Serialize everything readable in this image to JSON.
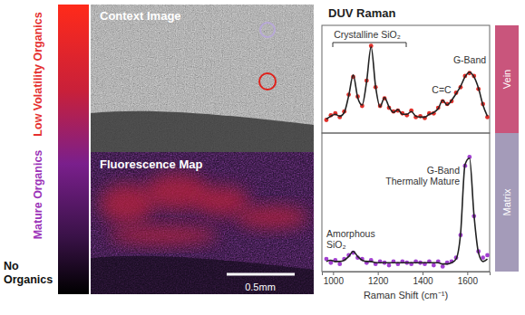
{
  "color_bar": {
    "labels": [
      {
        "lines": [
          "Low Volatility Organics"
        ],
        "color": "#e5302f"
      },
      {
        "lines": [
          "Mature Organics"
        ],
        "color": "#9b32b8"
      },
      {
        "lines": [
          "No",
          "Organics"
        ],
        "color": "#111111"
      }
    ]
  },
  "panels": [
    {
      "title": "Context Image"
    },
    {
      "title": "Fluorescence Map",
      "scale_bar": "0.5mm"
    }
  ],
  "chart_data": [
    {
      "type": "scatter",
      "title": "DUV Raman",
      "panel_label": "Vein",
      "tick_labels": false,
      "xlim": [
        950,
        1700
      ],
      "ylim": [
        0,
        1.15
      ],
      "x": [
        970,
        990,
        1010,
        1030,
        1050,
        1070,
        1090,
        1110,
        1130,
        1150,
        1170,
        1190,
        1210,
        1230,
        1250,
        1270,
        1290,
        1310,
        1330,
        1350,
        1370,
        1390,
        1410,
        1430,
        1450,
        1470,
        1490,
        1510,
        1530,
        1550,
        1570,
        1590,
        1610,
        1630,
        1650,
        1670,
        1690
      ],
      "series": [
        {
          "type": "scatter",
          "marker": "circle",
          "color": "#e0302a",
          "values": [
            0.14,
            0.19,
            0.21,
            0.17,
            0.23,
            0.41,
            0.6,
            0.39,
            0.29,
            0.56,
            0.93,
            0.49,
            0.29,
            0.37,
            0.27,
            0.23,
            0.24,
            0.21,
            0.19,
            0.24,
            0.17,
            0.18,
            0.16,
            0.21,
            0.21,
            0.27,
            0.34,
            0.31,
            0.34,
            0.43,
            0.49,
            0.61,
            0.64,
            0.61,
            0.47,
            0.31,
            0.17
          ]
        },
        {
          "type": "line",
          "line_style": "solid",
          "color": "#222222",
          "values": [
            0.15,
            0.18,
            0.2,
            0.18,
            0.22,
            0.4,
            0.62,
            0.38,
            0.3,
            0.55,
            0.92,
            0.5,
            0.28,
            0.38,
            0.28,
            0.22,
            0.25,
            0.2,
            0.2,
            0.23,
            0.18,
            0.17,
            0.17,
            0.2,
            0.22,
            0.26,
            0.35,
            0.3,
            0.35,
            0.42,
            0.5,
            0.6,
            0.65,
            0.6,
            0.48,
            0.3,
            0.18
          ]
        }
      ],
      "annotations": [
        {
          "lines": [
            "Crystalline SiO₂"
          ]
        },
        {
          "lines": [
            "C=C"
          ]
        },
        {
          "lines": [
            "G-Band"
          ]
        }
      ]
    },
    {
      "type": "scatter",
      "panel_label": "Matrix",
      "tick_labels": "x",
      "x_label": "Raman Shift (cm⁻¹)",
      "xlim": [
        950,
        1700
      ],
      "ylim": [
        0,
        1.1
      ],
      "xticks": [
        1000,
        1200,
        1400,
        1600
      ],
      "x": [
        970,
        990,
        1010,
        1030,
        1050,
        1070,
        1090,
        1110,
        1130,
        1150,
        1170,
        1190,
        1210,
        1230,
        1250,
        1270,
        1290,
        1310,
        1330,
        1350,
        1370,
        1390,
        1410,
        1430,
        1450,
        1470,
        1490,
        1510,
        1530,
        1550,
        1570,
        1590,
        1610,
        1630,
        1650,
        1670,
        1690
      ],
      "series": [
        {
          "type": "scatter",
          "marker": "circle",
          "color": "#a23fd0",
          "values": [
            0.1,
            0.07,
            0.09,
            0.06,
            0.1,
            0.13,
            0.15,
            0.11,
            0.1,
            0.07,
            0.09,
            0.06,
            0.08,
            0.07,
            0.05,
            0.08,
            0.06,
            0.08,
            0.07,
            0.06,
            0.08,
            0.07,
            0.06,
            0.08,
            0.05,
            0.08,
            0.04,
            0.07,
            0.08,
            0.11,
            0.29,
            0.84,
            0.91,
            0.44,
            0.16,
            0.11,
            0.13
          ]
        },
        {
          "type": "line",
          "line_style": "solid",
          "color": "#222222",
          "values": [
            0.08,
            0.09,
            0.08,
            0.08,
            0.09,
            0.12,
            0.16,
            0.12,
            0.09,
            0.08,
            0.08,
            0.07,
            0.07,
            0.07,
            0.07,
            0.07,
            0.07,
            0.07,
            0.07,
            0.07,
            0.07,
            0.07,
            0.07,
            0.07,
            0.07,
            0.07,
            0.06,
            0.06,
            0.07,
            0.1,
            0.3,
            0.85,
            0.9,
            0.45,
            0.15,
            0.08,
            0.1
          ]
        }
      ],
      "annotations": [
        {
          "lines": [
            "Amorphous",
            "SiO₂"
          ]
        },
        {
          "lines": [
            "G-Band",
            "Thermally Mature"
          ]
        }
      ]
    }
  ]
}
